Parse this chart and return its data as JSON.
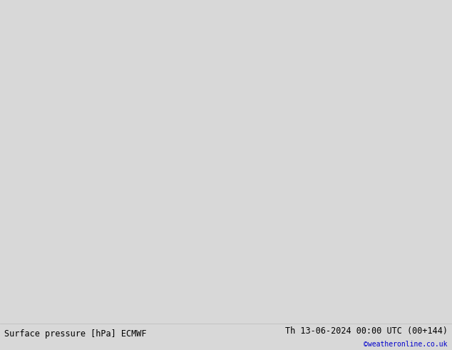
{
  "title_left": "Surface pressure [hPa] ECMWF",
  "title_right": "Th 13-06-2024 00:00 UTC (00+144)",
  "credit": "©weatheronline.co.uk",
  "fig_bg": "#d8d8d8",
  "map_bg": "#f0f0f0",
  "land_color": "#c8e8b0",
  "land_edge": "#888888",
  "blue": "#0000ff",
  "red": "#ff0000",
  "black": "#000000",
  "title_fontsize": 8.5,
  "credit_color": "#0000cc",
  "figsize": [
    6.34,
    4.9
  ],
  "dpi": 100,
  "map_extent": [
    90,
    175,
    -15,
    55
  ]
}
